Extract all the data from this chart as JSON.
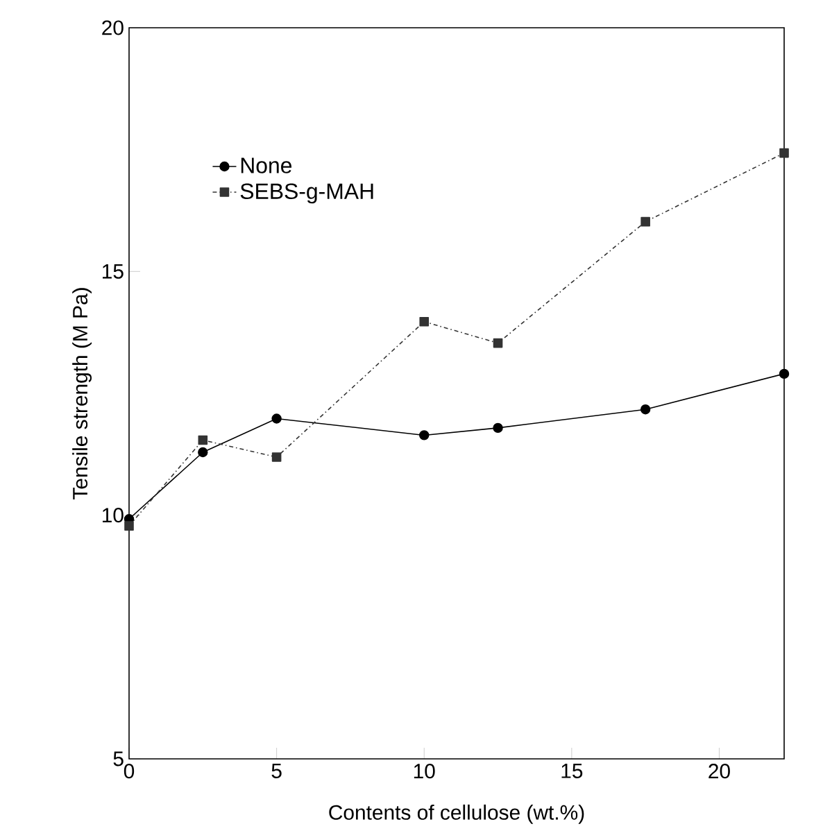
{
  "chart_data": {
    "type": "line",
    "xlabel": "Contents of cellulose (wt.%)",
    "ylabel": "Tensile strength (M Pa)",
    "xlim": [
      0,
      22.2
    ],
    "ylim": [
      5,
      20
    ],
    "xticks": [
      0,
      5,
      10,
      15,
      20
    ],
    "yticks": [
      5,
      10,
      15,
      20
    ],
    "legend": "top left",
    "grid": false,
    "series": [
      {
        "name": "None",
        "color": "#000000",
        "marker": "circle",
        "line_style": "solid",
        "x": [
          0,
          2.5,
          5,
          10,
          12.5,
          17.5,
          22.2
        ],
        "values": [
          9.92,
          11.29,
          11.98,
          11.64,
          11.79,
          12.17,
          12.9
        ]
      },
      {
        "name": "SEBS-g-MAH",
        "color": "#333333",
        "marker": "square",
        "line_style": "dashdot",
        "x": [
          0,
          2.5,
          5,
          10,
          12.5,
          17.5,
          22.2
        ],
        "values": [
          9.78,
          11.54,
          11.19,
          13.97,
          13.53,
          16.02,
          17.43
        ]
      }
    ]
  }
}
